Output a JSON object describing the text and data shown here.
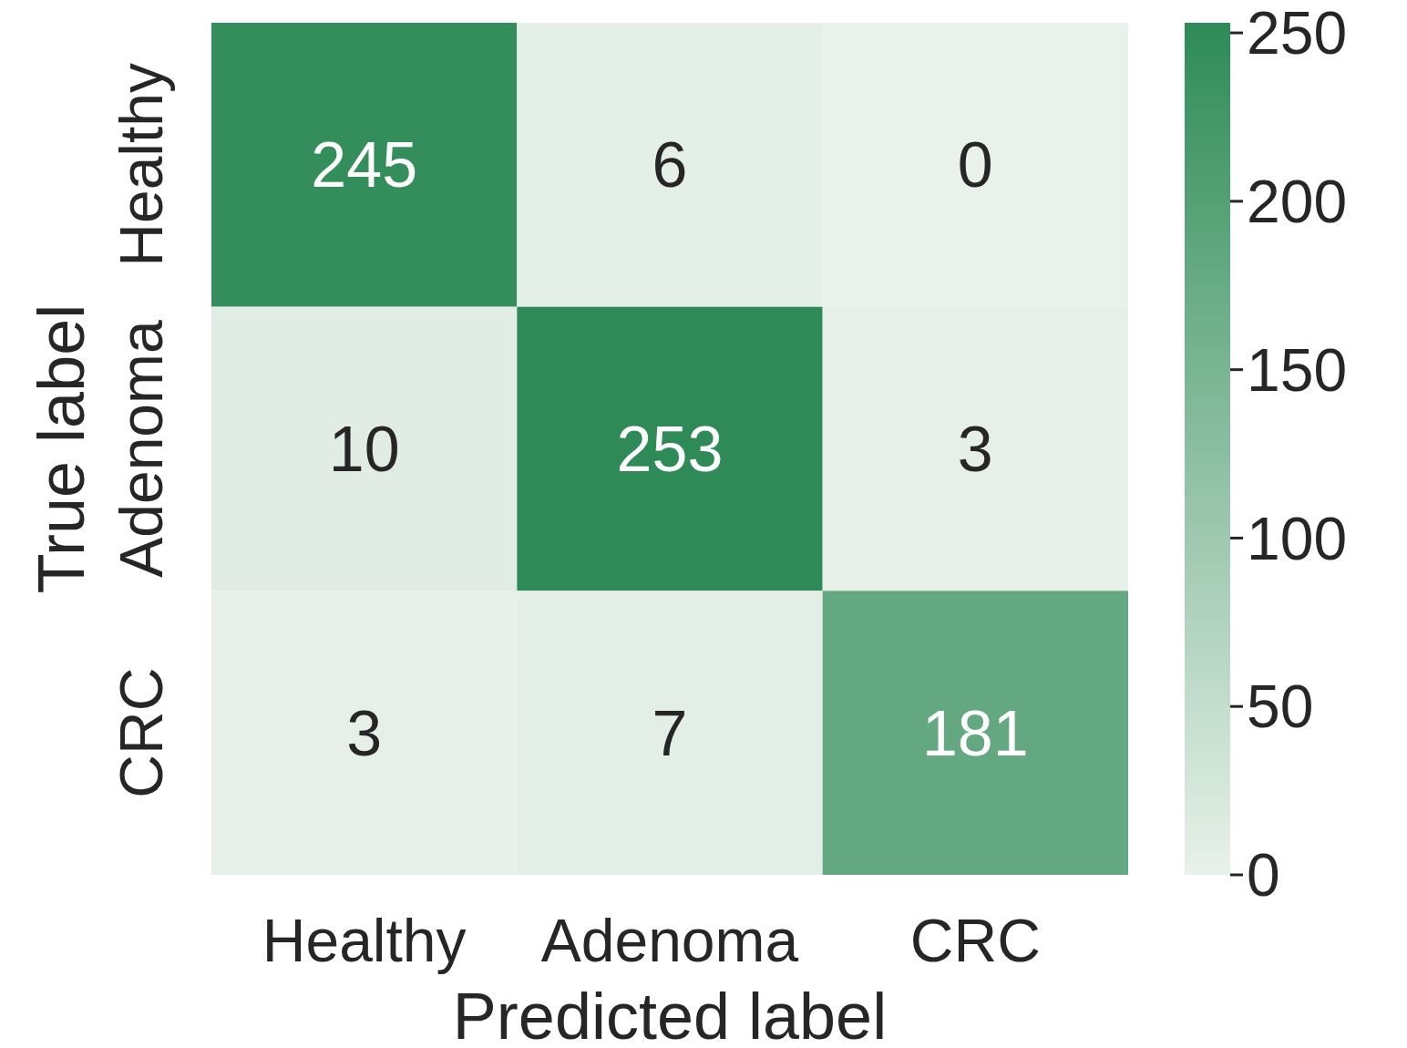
{
  "chart_data": {
    "type": "heatmap",
    "xlabel": "Predicted label",
    "ylabel": "True label",
    "categories": [
      "Healthy",
      "Adenoma",
      "CRC"
    ],
    "y_categories": [
      "Healthy",
      "Adenoma",
      "CRC"
    ],
    "cells": [
      [
        245,
        6,
        0
      ],
      [
        10,
        253,
        3
      ],
      [
        3,
        7,
        181
      ]
    ],
    "data_labels": true,
    "colors": [
      "#e8f1ea",
      "#2e8b57"
    ],
    "clim": [
      0,
      253
    ],
    "cticks": [
      0,
      50,
      100,
      150,
      200,
      250
    ]
  }
}
